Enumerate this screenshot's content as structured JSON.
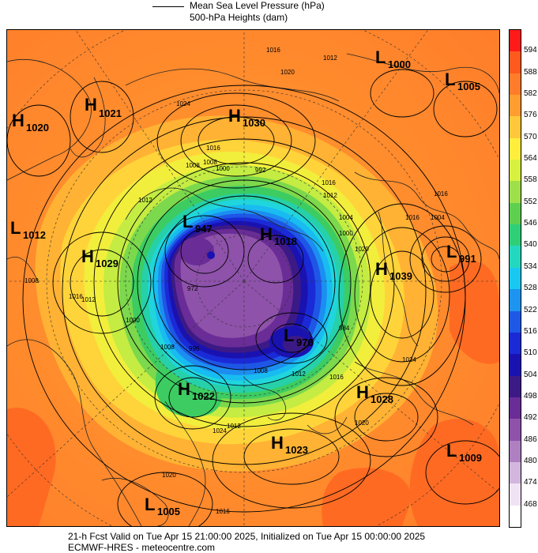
{
  "header": {
    "legend_label": "Mean Sea Level Pressure (hPa)",
    "subtitle": "500-hPa Heights (dam)"
  },
  "colorbar": {
    "levels": [
      "594",
      "588",
      "582",
      "576",
      "570",
      "564",
      "558",
      "552",
      "546",
      "540",
      "534",
      "528",
      "522",
      "516",
      "510",
      "504",
      "498",
      "492",
      "486",
      "480",
      "474",
      "468"
    ],
    "colors": [
      "#ff1a1a",
      "#ff5a1e",
      "#ff7d2a",
      "#ff9d30",
      "#ffc83a",
      "#ffee3c",
      "#d8f040",
      "#9fe04a",
      "#5fcf50",
      "#2fcf78",
      "#24d8c0",
      "#18c8f0",
      "#1c94f0",
      "#1e58e6",
      "#1a2ad6",
      "#1a12b0",
      "#3c1a86",
      "#6a2c96",
      "#8e52aa",
      "#ae80c2",
      "#d2b6de",
      "#f0e4f4",
      "#ffffff"
    ]
  },
  "pressure_centers": [
    {
      "type": "H",
      "value": "1020",
      "name": "high-1020"
    },
    {
      "type": "H",
      "value": "1021",
      "name": "high-1021"
    },
    {
      "type": "H",
      "value": "1030",
      "name": "high-1030"
    },
    {
      "type": "L",
      "value": "1000",
      "name": "low-1000"
    },
    {
      "type": "L",
      "value": "1005",
      "name": "low-1005-east"
    },
    {
      "type": "L",
      "value": "1012",
      "name": "low-1012"
    },
    {
      "type": "H",
      "value": "1029",
      "name": "high-1029"
    },
    {
      "type": "L",
      "value": "947",
      "name": "low-947"
    },
    {
      "type": "H",
      "value": "1018",
      "name": "high-1018"
    },
    {
      "type": "H",
      "value": "1039",
      "name": "high-1039"
    },
    {
      "type": "L",
      "value": "991",
      "name": "low-991"
    },
    {
      "type": "L",
      "value": "970",
      "name": "low-970"
    },
    {
      "type": "H",
      "value": "1022",
      "name": "high-1022"
    },
    {
      "type": "H",
      "value": "1028",
      "name": "high-1028"
    },
    {
      "type": "H",
      "value": "1023",
      "name": "high-1023"
    },
    {
      "type": "L",
      "value": "1009",
      "name": "low-1009"
    },
    {
      "type": "L",
      "value": "1005",
      "name": "low-1005-south"
    }
  ],
  "isobar_labels": [
    "1016",
    "1020",
    "1012",
    "1024",
    "1016",
    "1008",
    "1008",
    "1000",
    "992",
    "1016",
    "1012",
    "1004",
    "1016",
    "1016",
    "1004",
    "1000",
    "1020",
    "1024",
    "1012",
    "1008",
    "1000",
    "1016",
    "1012",
    "1020",
    "1024",
    "1020",
    "1016",
    "1008",
    "1012",
    "972",
    "984",
    "996",
    "1008",
    "1012",
    "1016"
  ],
  "footer": {
    "valid_line": "21-h Fcst Valid on Tue Apr 15 21:00:00 2025, Initialized on Tue Apr 15 00:00:00 2025",
    "source_line": "ECMWF-HRES - meteocentre.com"
  }
}
